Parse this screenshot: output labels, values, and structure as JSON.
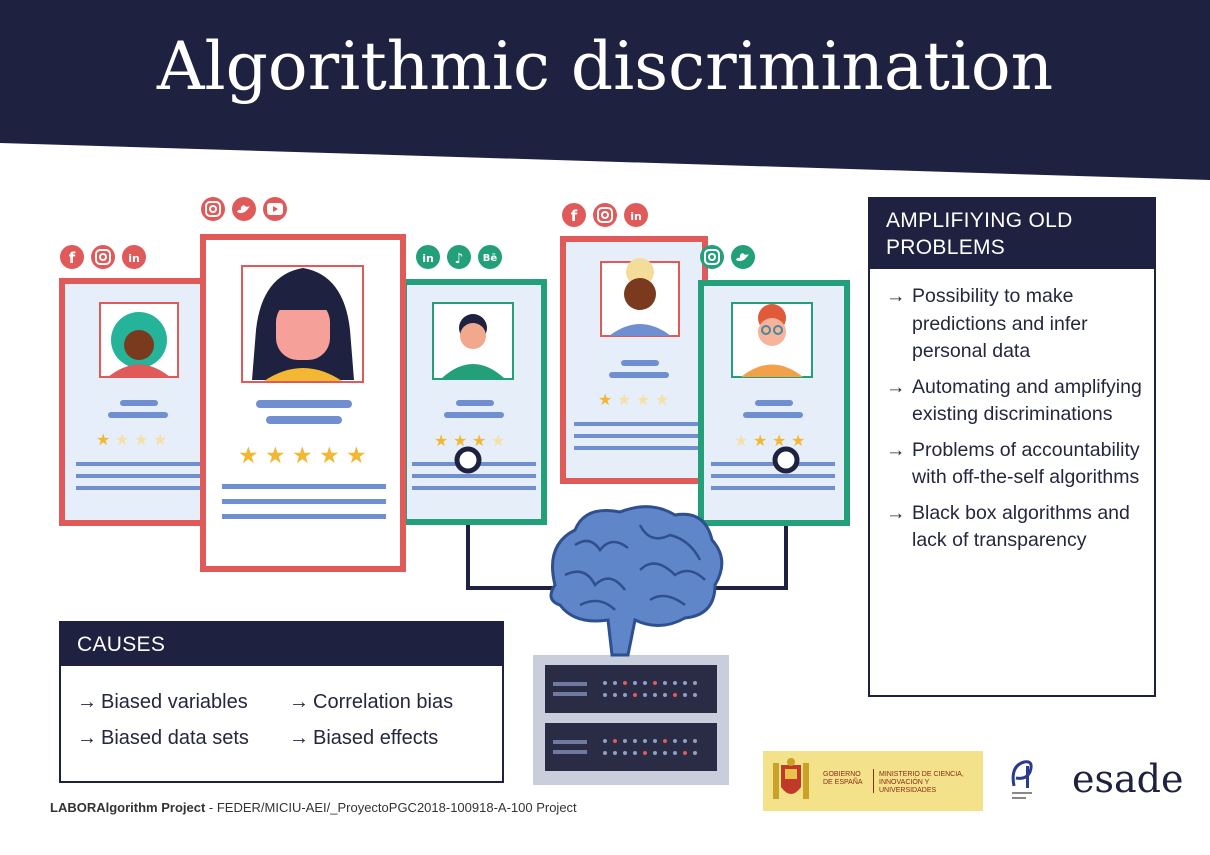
{
  "title": "Algorithmic discrimination",
  "amplifying": {
    "heading": "AMPLIFIYING OLD PROBLEMS",
    "items": [
      "Possibility to make predictions and infer personal data",
      "Automating and amplifying existing discriminations",
      "Problems of accountability with off-the-self algorithms",
      "Black box algorithms and lack of transparency"
    ]
  },
  "causes": {
    "heading": "CAUSES",
    "items": [
      "Biased variables",
      "Correlation bias",
      "Biased data sets",
      "Biased effects"
    ]
  },
  "footer": {
    "bold": "LABORAlgorithm Project",
    "rest": " - FEDER/MICIU-AEI/_ProyectoPGC2018-100918-A-100 Project"
  },
  "logos": {
    "gov_left": "GOBIERNO DE ESPAÑA",
    "gov_right": "MINISTERIO DE CIENCIA, INNOVACIÓN Y UNIVERSIDADES",
    "esade": "esade"
  },
  "profiles": [
    {
      "stars_filled": 1,
      "stars_total": 4,
      "border": "#e05a5a",
      "socials": [
        "facebook-icon",
        "instagram-icon",
        "linkedin-icon"
      ]
    },
    {
      "stars_filled": 5,
      "stars_total": 5,
      "border": "#e05a5a",
      "socials": [
        "instagram-icon",
        "twitter-icon",
        "youtube-icon"
      ]
    },
    {
      "stars_filled": 3,
      "stars_total": 4,
      "border": "#23a07a",
      "socials": [
        "linkedin-icon",
        "tiktok-icon",
        "behance-icon"
      ]
    },
    {
      "stars_filled": 1,
      "stars_total": 4,
      "border": "#e05a5a",
      "socials": [
        "facebook-icon",
        "instagram-icon",
        "linkedin-icon"
      ]
    },
    {
      "stars_filled": 3,
      "stars_total": 4,
      "border": "#23a07a",
      "socials": [
        "instagram-icon",
        "twitter-icon"
      ]
    }
  ],
  "colors": {
    "navy": "#1f2140",
    "red": "#e05a5a",
    "green": "#23a07a",
    "star": "#f2b733",
    "brain": "#5f86c9"
  }
}
